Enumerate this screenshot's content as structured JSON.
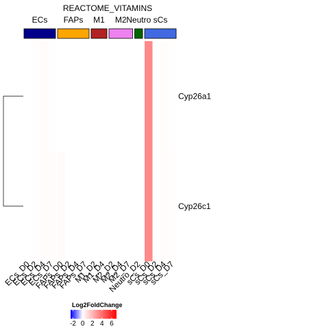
{
  "chart_data": {
    "type": "heatmap",
    "title": "REACTOME_VITAMINS",
    "rows": [
      "Cyp26a1",
      "Cyp26c1"
    ],
    "columns": [
      "ECs_D0",
      "ECs_D2",
      "ECs_D4",
      "ECs_D7",
      "FAPs_D0",
      "FAPs_D2",
      "FAPs_D4",
      "FAPs_D7",
      "M1_D2",
      "M1_D4",
      "M2_D2",
      "M2_D4",
      "M2_D7",
      "Neutro_D2",
      "sCs_D0",
      "sCs_D2",
      "sCs_D4",
      "sCs_D7"
    ],
    "values": [
      [
        0,
        0.05,
        0.1,
        0.02,
        0,
        0,
        0,
        0,
        0,
        0,
        0,
        0,
        0,
        0,
        3.2,
        0.02,
        0.08,
        0.02
      ],
      [
        0,
        0.05,
        0.1,
        0.08,
        0.12,
        0,
        0,
        0,
        0,
        0,
        0,
        0,
        0,
        0,
        3.2,
        0.05,
        0.1,
        0.05
      ]
    ],
    "column_groups": [
      {
        "name": "ECs",
        "color": "#00008b",
        "count": 4
      },
      {
        "name": "FAPs",
        "color": "#ffa500",
        "count": 4
      },
      {
        "name": "M1",
        "color": "#b22222",
        "count": 2
      },
      {
        "name": "M2",
        "color": "#ee82ee",
        "count": 3
      },
      {
        "name": "Neutro",
        "color": "#006400",
        "count": 1
      },
      {
        "name": "sCs",
        "color": "#4169e1",
        "count": 4
      }
    ],
    "legend": {
      "title": "Log2FoldChange",
      "ticks": [
        "-2",
        "0",
        "2",
        "4",
        "6"
      ],
      "range": [
        -2.5,
        7
      ],
      "colors": {
        "low": "#0000ff",
        "mid": "#ffffff",
        "high": "#ff0000"
      }
    },
    "row_dendrogram": true
  }
}
